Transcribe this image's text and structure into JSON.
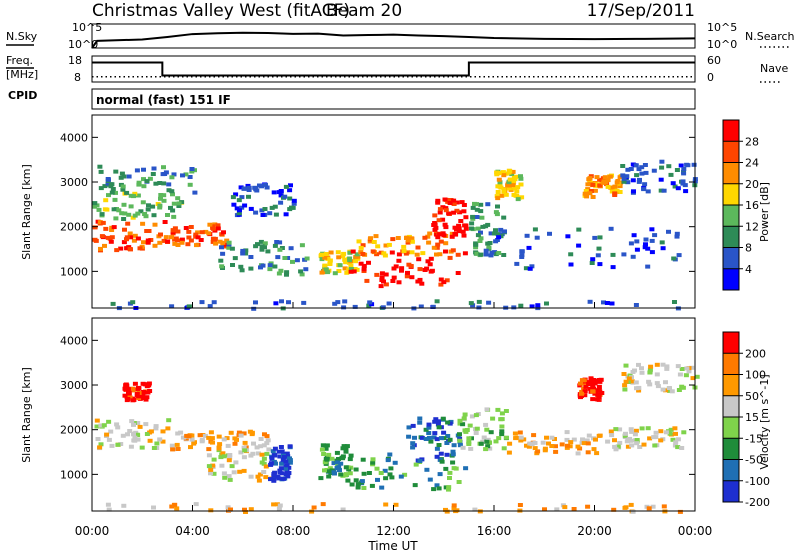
{
  "header": {
    "title": "Christmas Valley West (fitACF)",
    "beam": "Beam 20",
    "date": "17/Sep/2011"
  },
  "sky_panel": {
    "left_label": "N.Sky",
    "right_label": "N.Search",
    "left_ticks": [
      "10^5",
      "10^0"
    ],
    "right_ticks": [
      "10^5",
      "10^0"
    ]
  },
  "freq_panel": {
    "left_label_1": "Freq.",
    "left_label_2": "[MHz]",
    "right_label": "Nave",
    "left_ticks": [
      "18",
      "8"
    ],
    "right_ticks": [
      "60",
      "0"
    ]
  },
  "cpid": {
    "label": "CPID",
    "value": "normal (fast) 151 IF"
  },
  "time_axis": {
    "label": "Time UT",
    "ticks": [
      "00:00",
      "04:00",
      "08:00",
      "12:00",
      "16:00",
      "20:00",
      "00:00"
    ]
  },
  "colors": {
    "power": [
      "#0000ff",
      "#2a55c8",
      "#2e8b57",
      "#5cb85c",
      "#ffd700",
      "#ff8c00",
      "#ff4500",
      "#ff0000"
    ],
    "velocity": [
      "#1e2fd0",
      "#1f6fb4",
      "#1f8c3a",
      "#7fd34b",
      "#c8c8c8",
      "#ff9900",
      "#ff7a00",
      "#ff0000"
    ],
    "ground_scatter": "#a0a0a0"
  },
  "chart_data": [
    {
      "type": "line",
      "panel": "N.Sky / N.Search",
      "ylabel": "N.Sky",
      "y2label": "N.Search",
      "yscale": "log",
      "ylim": [
        1,
        100000
      ],
      "xlim": [
        0,
        24
      ],
      "series": [
        {
          "name": "N.Sky",
          "x": [
            0,
            0.2,
            2,
            3,
            4,
            5,
            6,
            7,
            8,
            9,
            10,
            11,
            12,
            13,
            14,
            15,
            16,
            18,
            20,
            22,
            24
          ],
          "y": [
            1,
            30,
            60,
            200,
            800,
            1200,
            1500,
            1300,
            900,
            1000,
            400,
            500,
            600,
            400,
            300,
            200,
            120,
            80,
            70,
            80,
            100
          ]
        },
        {
          "name": "N.Search",
          "x": [
            0,
            24
          ],
          "y": [
            1,
            1
          ]
        }
      ]
    },
    {
      "type": "line",
      "panel": "Freq. / Nave",
      "ylabel": "Freq. [MHz]",
      "y2label": "Nave",
      "ylim": [
        8,
        18
      ],
      "y2lim": [
        0,
        60
      ],
      "xlim": [
        0,
        24
      ],
      "series": [
        {
          "name": "Freq.",
          "x": [
            0,
            2.8,
            2.8,
            15,
            15,
            24
          ],
          "y": [
            15.5,
            15.5,
            10.5,
            10.5,
            15.5,
            15.5
          ]
        },
        {
          "name": "Nave",
          "x": [
            0,
            24
          ],
          "y": [
            12,
            12
          ]
        }
      ]
    },
    {
      "type": "heatmap",
      "panel": "Power",
      "ylabel": "Slant Range [km]",
      "xlabel": "Time UT",
      "colorbar_label": "Power [dB]",
      "colorbar_ticks": [
        "28",
        "24",
        "20",
        "16",
        "12",
        "8",
        "4"
      ],
      "colorbar_values": [
        28,
        24,
        20,
        16,
        12,
        8,
        4
      ],
      "yticks": [
        1000,
        2000,
        3000,
        4000
      ],
      "ylim": [
        180,
        4500
      ],
      "xlim": [
        0,
        24
      ],
      "regions": [
        {
          "t0": 0.0,
          "t1": 2.9,
          "r0": 1500,
          "r1": 2200,
          "level": 6
        },
        {
          "t0": 0.0,
          "t1": 3.5,
          "r0": 2200,
          "r1": 2800,
          "level": 3
        },
        {
          "t0": 0.2,
          "t1": 4.0,
          "r0": 2800,
          "r1": 3400,
          "level": 2
        },
        {
          "t0": 2.9,
          "t1": 5.3,
          "r0": 1600,
          "r1": 2100,
          "level": 6
        },
        {
          "t0": 5.0,
          "t1": 8.5,
          "r0": 950,
          "r1": 1750,
          "level": 2
        },
        {
          "t0": 5.5,
          "t1": 8.0,
          "r0": 2300,
          "r1": 3000,
          "level": 1
        },
        {
          "t0": 9.0,
          "t1": 10.5,
          "r0": 1000,
          "r1": 1500,
          "level": 4
        },
        {
          "t0": 10.2,
          "t1": 14.8,
          "r0": 700,
          "r1": 1500,
          "level": 7
        },
        {
          "t0": 10.5,
          "t1": 14.5,
          "r0": 1400,
          "r1": 1900,
          "level": 5
        },
        {
          "t0": 13.5,
          "t1": 14.8,
          "r0": 1800,
          "r1": 2700,
          "level": 7
        },
        {
          "t0": 15.0,
          "t1": 16.3,
          "r0": 1400,
          "r1": 2600,
          "level": 2
        },
        {
          "t0": 16.0,
          "t1": 23.5,
          "r0": 1100,
          "r1": 2000,
          "level": 1
        },
        {
          "t0": 16.0,
          "t1": 17.0,
          "r0": 2600,
          "r1": 3300,
          "level": 4
        },
        {
          "t0": 19.5,
          "t1": 21.0,
          "r0": 2700,
          "r1": 3200,
          "level": 5
        },
        {
          "t0": 21.0,
          "t1": 24.0,
          "r0": 2800,
          "r1": 3500,
          "level": 1
        },
        {
          "t0": 0.0,
          "t1": 24.0,
          "r0": 200,
          "r1": 380,
          "level": 1
        }
      ]
    },
    {
      "type": "heatmap",
      "panel": "Velocity",
      "ylabel": "Slant Range [km]",
      "xlabel": "Time UT",
      "colorbar_label": "Velocity [m s^-1]",
      "colorbar_ticks": [
        "200",
        "100",
        "50",
        "15",
        "-15",
        "-50",
        "-100",
        "-200"
      ],
      "colorbar_values": [
        200,
        100,
        50,
        15,
        -15,
        -50,
        -100,
        -200
      ],
      "yticks": [
        1000,
        2000,
        3000,
        4000
      ],
      "ylim": [
        180,
        4500
      ],
      "xlim": [
        0,
        24
      ],
      "regions": [
        {
          "t0": 0.0,
          "t1": 3.0,
          "r0": 1600,
          "r1": 2300,
          "level": 4
        },
        {
          "t0": 3.0,
          "t1": 7.0,
          "r0": 1600,
          "r1": 2000,
          "level": 5
        },
        {
          "t0": 4.5,
          "t1": 7.2,
          "r0": 900,
          "r1": 1700,
          "level": 4
        },
        {
          "t0": 7.0,
          "t1": 7.8,
          "r0": 900,
          "r1": 1700,
          "level": 0
        },
        {
          "t0": 1.2,
          "t1": 2.2,
          "r0": 2700,
          "r1": 3100,
          "level": 7
        },
        {
          "t0": 9.0,
          "t1": 10.2,
          "r0": 900,
          "r1": 1700,
          "level": 2
        },
        {
          "t0": 10.2,
          "t1": 14.8,
          "r0": 700,
          "r1": 1500,
          "level": 2
        },
        {
          "t0": 12.5,
          "t1": 14.8,
          "r0": 1300,
          "r1": 2300,
          "level": 1
        },
        {
          "t0": 14.5,
          "t1": 16.5,
          "r0": 1600,
          "r1": 2500,
          "level": 3
        },
        {
          "t0": 16.5,
          "t1": 20.5,
          "r0": 1500,
          "r1": 2000,
          "level": 5
        },
        {
          "t0": 20.5,
          "t1": 23.5,
          "r0": 1600,
          "r1": 2100,
          "level": 4
        },
        {
          "t0": 19.3,
          "t1": 20.2,
          "r0": 2700,
          "r1": 3200,
          "level": 7
        },
        {
          "t0": 21.0,
          "t1": 24.0,
          "r0": 2900,
          "r1": 3500,
          "level": 4
        },
        {
          "t0": 0.0,
          "t1": 24.0,
          "r0": 200,
          "r1": 380,
          "level": 5
        }
      ]
    }
  ]
}
